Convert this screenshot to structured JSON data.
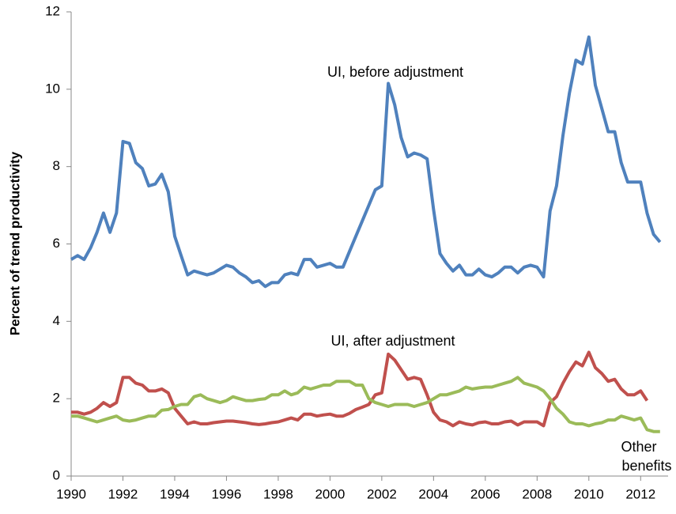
{
  "chart_data": {
    "type": "line",
    "ylabel": "Percent of trend productivity",
    "annotations": [
      "UI, before adjustment",
      "UI, after adjustment",
      "Other",
      "benefits"
    ],
    "x": [
      1990,
      1990.25,
      1990.5,
      1990.75,
      1991,
      1991.25,
      1991.5,
      1991.75,
      1992,
      1992.25,
      1992.5,
      1992.75,
      1993,
      1993.25,
      1993.5,
      1993.75,
      1994,
      1994.25,
      1994.5,
      1994.75,
      1995,
      1995.25,
      1995.5,
      1995.75,
      1996,
      1996.25,
      1996.5,
      1996.75,
      1997,
      1997.25,
      1997.5,
      1997.75,
      1998,
      1998.25,
      1998.5,
      1998.75,
      1999,
      1999.25,
      1999.5,
      1999.75,
      2000,
      2000.25,
      2000.5,
      2000.75,
      2001,
      2001.25,
      2001.5,
      2001.75,
      2002,
      2002.25,
      2002.5,
      2002.75,
      2003,
      2003.25,
      2003.5,
      2003.75,
      2004,
      2004.25,
      2004.5,
      2004.75,
      2005,
      2005.25,
      2005.5,
      2005.75,
      2006,
      2006.25,
      2006.5,
      2006.75,
      2007,
      2007.25,
      2007.5,
      2007.75,
      2008,
      2008.25,
      2008.5,
      2008.75,
      2009,
      2009.25,
      2009.5,
      2009.75,
      2010,
      2010.25,
      2010.5,
      2010.75,
      2011,
      2011.25,
      2011.5,
      2011.75,
      2012,
      2012.25,
      2012.5,
      2012.75
    ],
    "series": [
      {
        "color": "#4f81bd",
        "values": [
          5.6,
          5.7,
          5.6,
          5.9,
          6.3,
          6.8,
          6.3,
          6.8,
          8.65,
          8.6,
          8.1,
          7.95,
          7.5,
          7.55,
          7.8,
          7.35,
          6.2,
          5.7,
          5.2,
          5.3,
          5.25,
          5.2,
          5.25,
          5.35,
          5.45,
          5.4,
          5.25,
          5.15,
          5.0,
          5.05,
          4.9,
          5.0,
          5.0,
          5.2,
          5.25,
          5.2,
          5.6,
          5.6,
          5.4,
          5.45,
          5.5,
          5.4,
          5.4,
          5.8,
          6.2,
          6.6,
          7.0,
          7.4,
          7.5,
          10.15,
          9.6,
          8.75,
          8.25,
          8.35,
          8.3,
          8.2,
          6.9,
          5.75,
          5.5,
          5.3,
          5.45,
          5.2,
          5.2,
          5.35,
          5.2,
          5.15,
          5.25,
          5.4,
          5.4,
          5.25,
          5.4,
          5.45,
          5.4,
          5.15,
          6.85,
          7.5,
          8.8,
          9.9,
          10.75,
          10.65,
          11.35,
          10.1,
          9.5,
          8.9,
          8.9,
          8.1,
          7.6,
          7.6,
          7.6,
          6.8,
          6.25,
          6.05
        ]
      },
      {
        "color": "#c0504d",
        "values": [
          1.65,
          1.65,
          1.6,
          1.65,
          1.75,
          1.9,
          1.8,
          1.9,
          2.55,
          2.55,
          2.4,
          2.35,
          2.2,
          2.2,
          2.25,
          2.15,
          1.75,
          1.55,
          1.35,
          1.4,
          1.35,
          1.35,
          1.38,
          1.4,
          1.42,
          1.42,
          1.4,
          1.38,
          1.35,
          1.33,
          1.35,
          1.38,
          1.4,
          1.45,
          1.5,
          1.45,
          1.6,
          1.6,
          1.55,
          1.58,
          1.6,
          1.55,
          1.55,
          1.62,
          1.72,
          1.78,
          1.85,
          2.1,
          2.15,
          3.15,
          3.0,
          2.75,
          2.5,
          2.55,
          2.5,
          2.1,
          1.65,
          1.45,
          1.4,
          1.3,
          1.4,
          1.35,
          1.32,
          1.38,
          1.4,
          1.35,
          1.35,
          1.4,
          1.42,
          1.32,
          1.4,
          1.4,
          1.4,
          1.3,
          1.9,
          2.05,
          2.4,
          2.7,
          2.95,
          2.85,
          3.2,
          2.8,
          2.65,
          2.45,
          2.5,
          2.25,
          2.1,
          2.1,
          2.2,
          1.95,
          null,
          null
        ]
      },
      {
        "color": "#9bbb59",
        "values": [
          1.55,
          1.55,
          1.5,
          1.45,
          1.4,
          1.45,
          1.5,
          1.55,
          1.45,
          1.42,
          1.45,
          1.5,
          1.55,
          1.55,
          1.7,
          1.72,
          1.8,
          1.85,
          1.85,
          2.05,
          2.1,
          2.0,
          1.95,
          1.9,
          1.95,
          2.05,
          2.0,
          1.95,
          1.95,
          1.98,
          2.0,
          2.1,
          2.1,
          2.2,
          2.1,
          2.15,
          2.3,
          2.25,
          2.3,
          2.35,
          2.35,
          2.45,
          2.45,
          2.45,
          2.35,
          2.35,
          2.0,
          1.9,
          1.85,
          1.8,
          1.85,
          1.85,
          1.85,
          1.8,
          1.85,
          1.9,
          2.0,
          2.1,
          2.1,
          2.15,
          2.2,
          2.3,
          2.25,
          2.28,
          2.3,
          2.3,
          2.35,
          2.4,
          2.45,
          2.55,
          2.4,
          2.35,
          2.3,
          2.2,
          2.0,
          1.75,
          1.6,
          1.4,
          1.35,
          1.35,
          1.3,
          1.35,
          1.38,
          1.45,
          1.45,
          1.55,
          1.5,
          1.45,
          1.5,
          1.2,
          1.15,
          1.15
        ]
      }
    ],
    "xlim": [
      1990,
      2013
    ],
    "xticks": [
      1990,
      1992,
      1994,
      1996,
      1998,
      2000,
      2002,
      2004,
      2006,
      2008,
      2010,
      2012
    ],
    "ylim": [
      0,
      12
    ],
    "yticks": [
      0,
      2,
      4,
      6,
      8,
      10,
      12
    ],
    "grid": false
  }
}
